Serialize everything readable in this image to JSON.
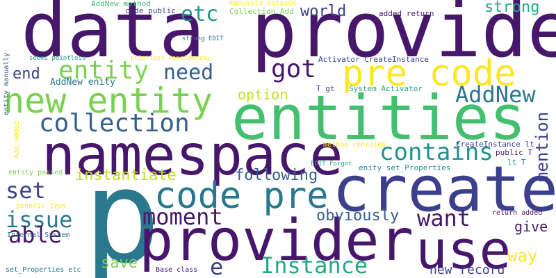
{
  "colors": {
    "background": "#ffffff",
    "dark_purple": "#46176a",
    "indigo": "#3b3f8c",
    "blue": "#355f8d",
    "teal_blue": "#2a788e",
    "teal": "#21918c",
    "green_teal": "#23a983",
    "green": "#44bf70",
    "light_green": "#7ad151",
    "yellow_green": "#bddf26",
    "yellow": "#fde725"
  },
  "words": [
    {
      "text": "data provider",
      "color": "#46176a"
    },
    {
      "text": "entities",
      "color": "#44bf70"
    },
    {
      "text": "namespace",
      "color": "#46176a"
    },
    {
      "text": "create",
      "color": "#3b3f8c"
    },
    {
      "text": "p",
      "color": "#2a788e"
    },
    {
      "text": "provider",
      "color": "#46176a"
    },
    {
      "text": "use",
      "color": "#46176a"
    },
    {
      "text": "new entity",
      "color": "#7ad151"
    },
    {
      "text": "pre code",
      "color": "#fde725"
    },
    {
      "text": "code pre",
      "color": "#2a788e"
    },
    {
      "text": "collection",
      "color": "#355f8d"
    },
    {
      "text": "entity",
      "color": "#7ad151"
    },
    {
      "text": "got",
      "color": "#46176a"
    },
    {
      "text": "AddNew",
      "color": "#2a788e"
    },
    {
      "text": "contains",
      "color": "#21918c"
    },
    {
      "text": "need",
      "color": "#355f8d"
    },
    {
      "text": "etc",
      "color": "#21918c"
    },
    {
      "text": "moment",
      "color": "#46176a"
    },
    {
      "text": "issue",
      "color": "#2a788e"
    },
    {
      "text": "able",
      "color": "#46176a"
    },
    {
      "text": "want",
      "color": "#46176a"
    },
    {
      "text": "Instance",
      "color": "#23a983"
    },
    {
      "text": "set",
      "color": "#3b3f8c"
    },
    {
      "text": "e",
      "color": "#3b3f8c"
    },
    {
      "text": "world",
      "color": "#3b3f8c"
    },
    {
      "text": "strong",
      "color": "#23a983"
    },
    {
      "text": "end",
      "color": "#3b3f8c"
    },
    {
      "text": "instantiate",
      "color": "#bddf26"
    },
    {
      "text": "following",
      "color": "#355f8d"
    },
    {
      "text": "obviously",
      "color": "#355f8d"
    },
    {
      "text": "option",
      "color": "#bddf26"
    },
    {
      "text": "mention",
      "color": "#3b3f8c"
    },
    {
      "text": "give",
      "color": "#46176a"
    },
    {
      "text": "way",
      "color": "#fde725"
    },
    {
      "text": "save",
      "color": "#7ad151"
    },
    {
      "text": "new record",
      "color": "#3b3f8c"
    },
    {
      "text": "AddNew enity",
      "color": "#2a788e"
    },
    {
      "text": "AddNew method",
      "color": "#44bf70"
    },
    {
      "text": "code public",
      "color": "#3b3f8c"
    },
    {
      "text": "manually outside",
      "color": "#fde725"
    },
    {
      "text": "Collection Add",
      "color": "#7ad151"
    },
    {
      "text": "added return",
      "color": "#46176a"
    },
    {
      "text": "strong EDIT",
      "color": "#2a788e"
    },
    {
      "text": "seems pointless",
      "color": "#21918c"
    },
    {
      "text": "pointless considering",
      "color": "#fde725"
    },
    {
      "text": "Activator CreateInstance",
      "color": "#3b3f8c"
    },
    {
      "text": "entity manually",
      "color": "#355f8d"
    },
    {
      "text": "T gt",
      "color": "#3b3f8c"
    },
    {
      "text": "System Activator",
      "color": "#23a983"
    },
    {
      "text": "Add added",
      "color": "#fde725"
    },
    {
      "text": "method contains",
      "color": "#fde725"
    },
    {
      "text": "CreateInstance lt",
      "color": "#3b3f8c"
    },
    {
      "text": "public T",
      "color": "#46176a"
    },
    {
      "text": "lt T",
      "color": "#21918c"
    },
    {
      "text": "EDIT Forgot",
      "color": "#23a983"
    },
    {
      "text": "enity set_Properties",
      "color": "#21918c"
    },
    {
      "text": "entity passed",
      "color": "#7ad151"
    },
    {
      "text": "generic type",
      "color": "#fde725"
    },
    {
      "text": "Internal System",
      "color": "#2a788e"
    },
    {
      "text": "set_Properties etc",
      "color": "#2a788e"
    },
    {
      "text": "Base class",
      "color": "#46176a"
    },
    {
      "text": "return added",
      "color": "#46176a"
    }
  ]
}
